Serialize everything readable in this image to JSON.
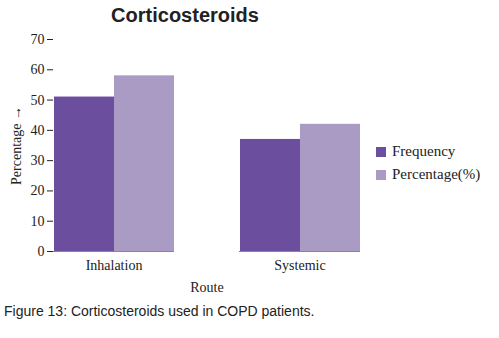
{
  "chart_data": {
    "type": "bar",
    "title": "Corticosteroids",
    "caption": "Figure 13: Corticosteroids used in COPD patients.",
    "x_label": "Route",
    "y_label": "Percentage",
    "categories": [
      "Inhalation",
      "Systemic"
    ],
    "series": [
      {
        "name": "Frequency",
        "color": "#6b4f9e",
        "values": [
          51,
          37
        ]
      },
      {
        "name": "Percentage(%)",
        "color": "#a99bc4",
        "values": [
          58,
          42
        ]
      }
    ],
    "ylim": [
      0,
      70
    ],
    "yticks": [
      0,
      10,
      20,
      30,
      40,
      50,
      60,
      70
    ],
    "grid": false,
    "legend": "right"
  }
}
